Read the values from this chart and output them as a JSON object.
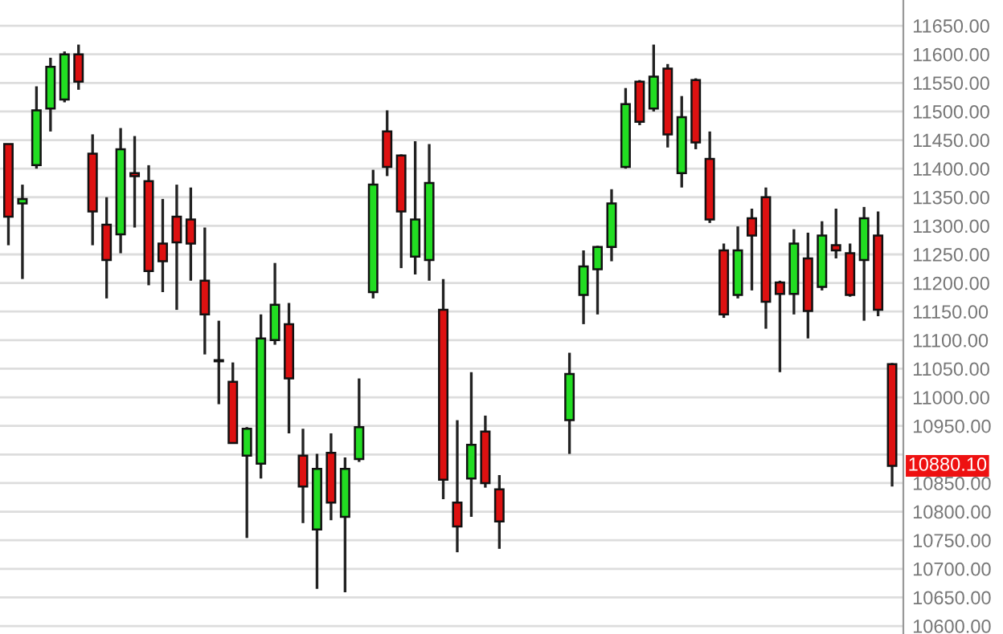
{
  "chart_data": {
    "type": "candlestick",
    "categories": [
      null,
      null,
      null,
      null,
      null,
      null,
      null,
      null,
      null,
      null,
      null,
      null,
      null,
      null,
      null,
      null,
      null,
      null,
      null,
      null,
      null,
      null,
      null,
      null,
      null,
      null,
      null,
      null,
      null,
      null,
      null,
      null,
      null,
      null,
      null,
      null,
      null,
      null,
      null,
      null,
      null,
      null,
      null,
      null,
      null,
      null,
      null,
      null,
      null,
      null,
      null,
      null,
      null,
      null,
      null,
      null,
      null,
      null,
      null,
      null,
      null,
      null,
      null,
      null
    ],
    "ohlc": [
      [
        11443,
        11443,
        11266,
        11316
      ],
      [
        11339,
        11372,
        11207,
        11347
      ],
      [
        11406,
        11544,
        11400,
        11502
      ],
      [
        11505,
        11594,
        11465,
        11578
      ],
      [
        11521,
        11605,
        11516,
        11600
      ],
      [
        11600,
        11617,
        11538,
        11552
      ],
      [
        11426,
        11460,
        11266,
        11325
      ],
      [
        11302,
        11350,
        11173,
        11240
      ],
      [
        11285,
        11471,
        11252,
        11434
      ],
      [
        11392,
        11457,
        11297,
        11387
      ],
      [
        11378,
        11406,
        11196,
        11221
      ],
      [
        11269,
        11347,
        11184,
        11238
      ],
      [
        11316,
        11372,
        11153,
        11271
      ],
      [
        11311,
        11367,
        11204,
        11269
      ],
      [
        11204,
        11297,
        11075,
        11145
      ],
      [
        11065,
        11134,
        10988,
        11063
      ],
      [
        11027,
        11061,
        10920,
        10920
      ],
      [
        10898,
        10948,
        10754,
        10945
      ],
      [
        10884,
        11145,
        10858,
        11103
      ],
      [
        11100,
        11235,
        11092,
        11162
      ],
      [
        11128,
        11165,
        10937,
        11033
      ],
      [
        10898,
        10945,
        10780,
        10844
      ],
      [
        10769,
        10901,
        10665,
        10875
      ],
      [
        10903,
        10937,
        10785,
        10816
      ],
      [
        10791,
        10895,
        10659,
        10875
      ],
      [
        10892,
        11033,
        10887,
        10948
      ],
      [
        11184,
        11398,
        11173,
        11372
      ],
      [
        11465,
        11502,
        11387,
        11403
      ],
      [
        11423,
        11425,
        11226,
        11325
      ],
      [
        11246,
        11448,
        11215,
        11311
      ],
      [
        11240,
        11443,
        11204,
        11375
      ],
      [
        11153,
        11207,
        10822,
        10856
      ],
      [
        10816,
        10960,
        10729,
        10774
      ],
      [
        10858,
        11044,
        10791,
        10917
      ],
      [
        10940,
        10968,
        10842,
        10850
      ],
      [
        10839,
        10864,
        10735,
        10783
      ],
      null,
      null,
      null,
      null,
      [
        10960,
        11078,
        10901,
        11041
      ],
      [
        11179,
        11257,
        11128,
        11229
      ],
      [
        11224,
        11265,
        11145,
        11263
      ],
      [
        11263,
        11364,
        11238,
        11339
      ],
      [
        11403,
        11541,
        11400,
        11513
      ],
      [
        11552,
        11555,
        11476,
        11482
      ],
      [
        11505,
        11617,
        11500,
        11561
      ],
      [
        11575,
        11583,
        11437,
        11460
      ],
      [
        11392,
        11527,
        11367,
        11490
      ],
      [
        11555,
        11558,
        11434,
        11446
      ],
      [
        11417,
        11465,
        11305,
        11311
      ],
      [
        11257,
        11269,
        11139,
        11145
      ],
      [
        11179,
        11299,
        11173,
        11257
      ],
      [
        11313,
        11330,
        11187,
        11283
      ],
      [
        11350,
        11367,
        11120,
        11167
      ],
      [
        11201,
        11204,
        11044,
        11181
      ],
      [
        11181,
        11294,
        11145,
        11269
      ],
      [
        11243,
        11288,
        11103,
        11151
      ],
      [
        11193,
        11308,
        11187,
        11283
      ],
      [
        11266,
        11330,
        11243,
        11257
      ],
      [
        11252,
        11269,
        11176,
        11179
      ],
      [
        11240,
        11333,
        11134,
        11313
      ],
      [
        11283,
        11325,
        11142,
        11153
      ],
      [
        11058,
        11060,
        10844,
        10880.1
      ]
    ],
    "colors": [
      "#dd1111",
      "#22dd22",
      "#22dd22",
      "#22dd22",
      "#22dd22",
      "#dd1111",
      "#dd1111",
      "#dd1111",
      "#22dd22",
      "#dd1111",
      "#dd1111",
      "#dd1111",
      "#dd1111",
      "#dd1111",
      "#dd1111",
      "#dd1111",
      "#dd1111",
      "#22dd22",
      "#22dd22",
      "#22dd22",
      "#dd1111",
      "#dd1111",
      "#22dd22",
      "#dd1111",
      "#22dd22",
      "#22dd22",
      "#22dd22",
      "#dd1111",
      "#dd1111",
      "#22dd22",
      "#22dd22",
      "#dd1111",
      "#dd1111",
      "#22dd22",
      "#dd1111",
      "#dd1111",
      null,
      null,
      null,
      null,
      "#22dd22",
      "#22dd22",
      "#22dd22",
      "#22dd22",
      "#22dd22",
      "#dd1111",
      "#22dd22",
      "#dd1111",
      "#22dd22",
      "#dd1111",
      "#dd1111",
      "#dd1111",
      "#22dd22",
      "#dd1111",
      "#dd1111",
      "#dd1111",
      "#22dd22",
      "#dd1111",
      "#22dd22",
      "#dd1111",
      "#dd1111",
      "#22dd22",
      "#dd1111",
      "#dd1111"
    ],
    "ylim": [
      10586,
      11695
    ],
    "yticks": [
      {
        "value": 10600,
        "label": "10600.00"
      },
      {
        "value": 10650,
        "label": "10650.00"
      },
      {
        "value": 10700,
        "label": "10700.00"
      },
      {
        "value": 10750,
        "label": "10750.00"
      },
      {
        "value": 10800,
        "label": "10800.00"
      },
      {
        "value": 10850,
        "label": "10850.00"
      },
      {
        "value": 10900,
        "label": null
      },
      {
        "value": 10950,
        "label": "10950.00"
      },
      {
        "value": 11000,
        "label": "11000.00"
      },
      {
        "value": 11050,
        "label": "11050.00"
      },
      {
        "value": 11100,
        "label": "11100.00"
      },
      {
        "value": 11150,
        "label": "11150.00"
      },
      {
        "value": 11200,
        "label": "11200.00"
      },
      {
        "value": 11250,
        "label": "11250.00"
      },
      {
        "value": 11300,
        "label": "11300.00"
      },
      {
        "value": 11350,
        "label": "11350.00"
      },
      {
        "value": 11400,
        "label": "11400.00"
      },
      {
        "value": 11450,
        "label": "11450.00"
      },
      {
        "value": 11500,
        "label": "11500.00"
      },
      {
        "value": 11550,
        "label": "11550.00"
      },
      {
        "value": 11600,
        "label": "11600.00"
      },
      {
        "value": 11650,
        "label": "11650.00"
      }
    ],
    "annotations": [
      "10880.10"
    ],
    "grid": "y"
  }
}
